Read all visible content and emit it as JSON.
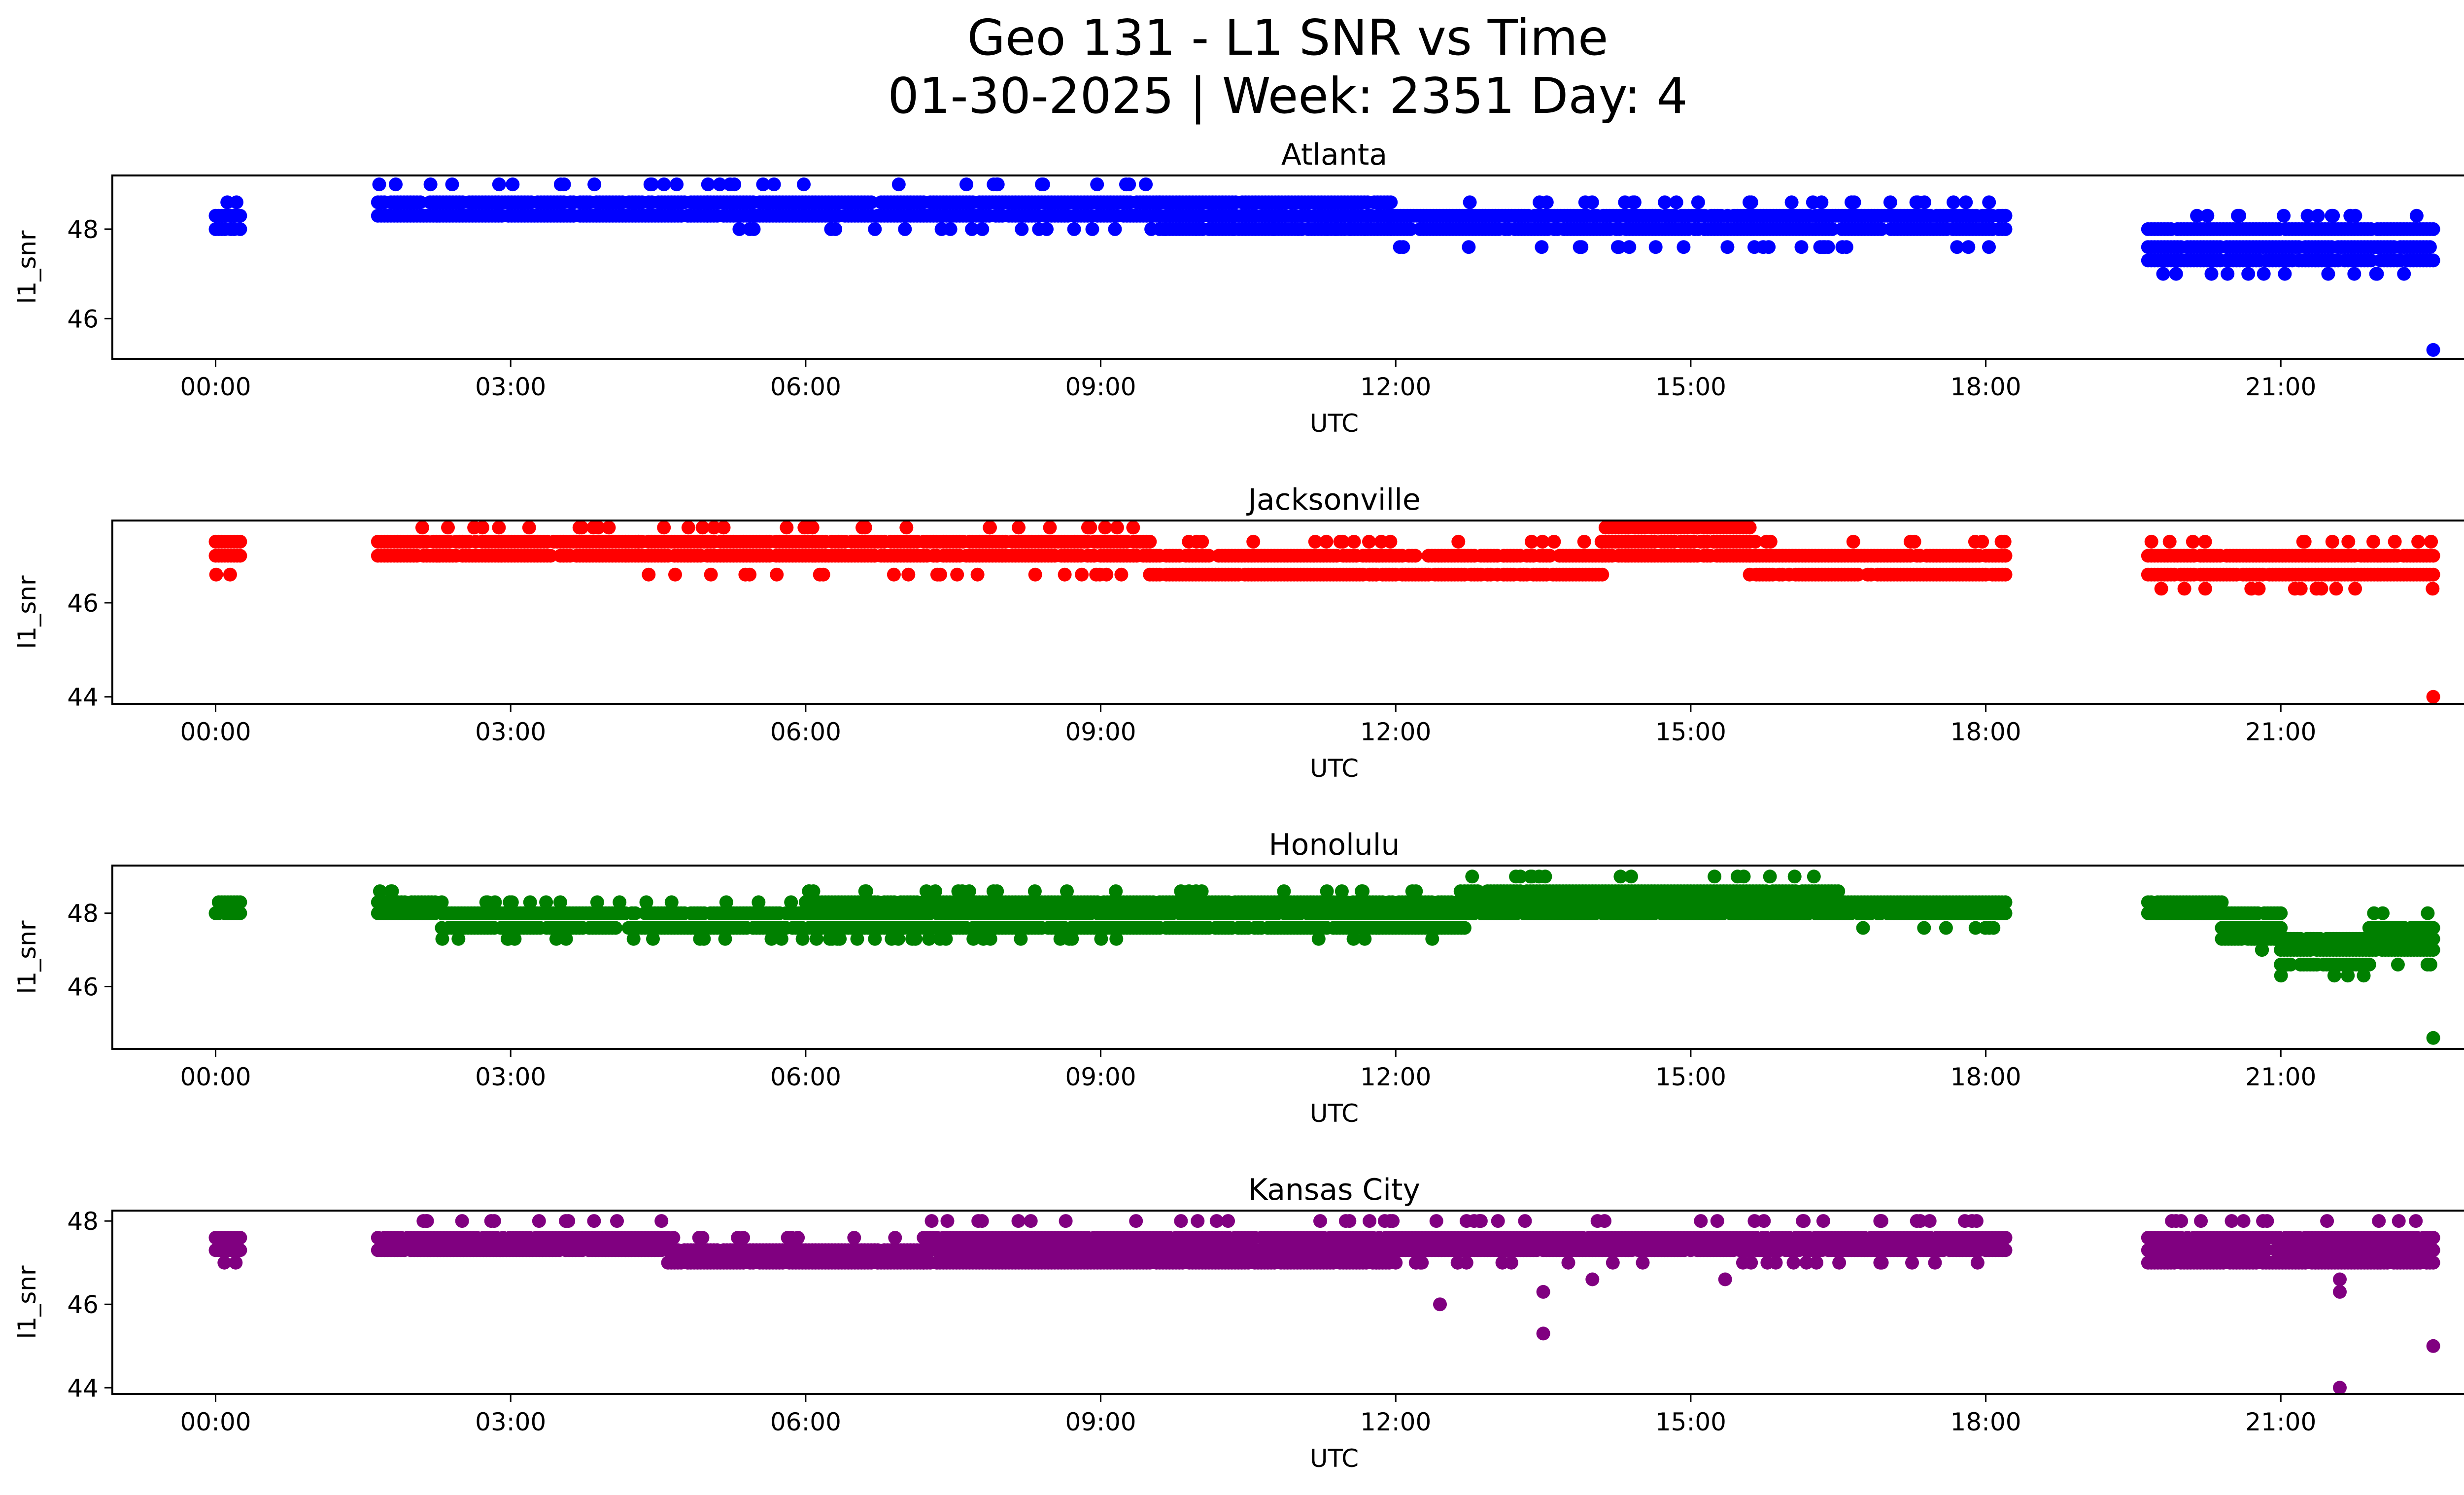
{
  "figure": {
    "title_line1": "Geo 131 - L1 SNR vs Time",
    "title_line2": "01-30-2025 | Week: 2351 Day: 4"
  },
  "chart_data": [
    {
      "type": "scatter",
      "title": "Atlanta",
      "color": "#0000ff",
      "xlabel": "UTC",
      "ylabel": "l1_snr",
      "xlim_hours": [
        -1.05,
        23.8
      ],
      "ylim": [
        45.1,
        49.2
      ],
      "yticks": [
        46,
        48
      ],
      "xticks": [
        "00:00",
        "03:00",
        "06:00",
        "09:00",
        "12:00",
        "15:00",
        "18:00",
        "21:00"
      ],
      "segments": [
        {
          "x0": 0.0,
          "x1": 0.25,
          "levels": [
            48.0,
            48.3
          ],
          "sparse": [
            48.6
          ]
        },
        {
          "x0": 1.65,
          "x1": 5.0,
          "levels": [
            48.3,
            48.6
          ],
          "sparse": [
            49.0
          ]
        },
        {
          "x0": 5.0,
          "x1": 9.6,
          "levels": [
            48.3,
            48.6
          ],
          "sparse": [
            48.0,
            49.0
          ]
        },
        {
          "x0": 9.6,
          "x1": 11.95,
          "levels": [
            48.0,
            48.3,
            48.6
          ],
          "sparse": [
            48.0
          ]
        },
        {
          "x0": 11.95,
          "x1": 18.2,
          "levels": [
            48.0,
            48.3
          ],
          "sparse": [
            47.6,
            48.6
          ]
        },
        {
          "x0": 19.65,
          "x1": 22.55,
          "levels": [
            47.3,
            47.6,
            48.0
          ],
          "sparse": [
            47.0,
            48.3
          ]
        }
      ],
      "outliers": [
        {
          "x": 22.55,
          "y": 45.3
        }
      ]
    },
    {
      "type": "scatter",
      "title": "Jacksonville",
      "color": "#ff0000",
      "xlabel": "UTC",
      "ylabel": "l1_snr",
      "xlim_hours": [
        -1.05,
        23.8
      ],
      "ylim": [
        43.85,
        47.75
      ],
      "yticks": [
        44,
        46
      ],
      "xticks": [
        "00:00",
        "03:00",
        "06:00",
        "09:00",
        "12:00",
        "15:00",
        "18:00",
        "21:00"
      ],
      "segments": [
        {
          "x0": 0.0,
          "x1": 0.25,
          "levels": [
            47.0,
            47.3
          ],
          "sparse": [
            46.6
          ]
        },
        {
          "x0": 1.65,
          "x1": 4.3,
          "levels": [
            47.0,
            47.3
          ],
          "sparse": [
            47.6
          ]
        },
        {
          "x0": 4.3,
          "x1": 9.5,
          "levels": [
            47.0,
            47.3
          ],
          "sparse": [
            46.6,
            47.6
          ]
        },
        {
          "x0": 9.5,
          "x1": 14.1,
          "levels": [
            46.6,
            47.0
          ],
          "sparse": [
            47.3
          ]
        },
        {
          "x0": 14.1,
          "x1": 15.6,
          "levels": [
            47.0,
            47.3,
            47.6
          ],
          "sparse": []
        },
        {
          "x0": 15.6,
          "x1": 18.2,
          "levels": [
            46.6,
            47.0
          ],
          "sparse": [
            47.3
          ]
        },
        {
          "x0": 19.65,
          "x1": 22.55,
          "levels": [
            46.6,
            47.0
          ],
          "sparse": [
            46.3,
            47.3
          ]
        }
      ],
      "outliers": [
        {
          "x": 22.55,
          "y": 44.0
        }
      ]
    },
    {
      "type": "scatter",
      "title": "Honolulu",
      "color": "#008000",
      "xlabel": "UTC",
      "ylabel": "l1_snr",
      "xlim_hours": [
        -1.05,
        23.8
      ],
      "ylim": [
        44.3,
        49.3
      ],
      "yticks": [
        46,
        48
      ],
      "xticks": [
        "00:00",
        "03:00",
        "06:00",
        "09:00",
        "12:00",
        "15:00",
        "18:00",
        "21:00"
      ],
      "segments": [
        {
          "x0": 0.0,
          "x1": 0.25,
          "levels": [
            48.0,
            48.3
          ],
          "sparse": []
        },
        {
          "x0": 1.65,
          "x1": 2.3,
          "levels": [
            48.0,
            48.3
          ],
          "sparse": [
            48.6
          ]
        },
        {
          "x0": 2.3,
          "x1": 6.0,
          "levels": [
            47.6,
            48.0
          ],
          "sparse": [
            47.3,
            48.3
          ]
        },
        {
          "x0": 6.0,
          "x1": 12.7,
          "levels": [
            47.6,
            48.0,
            48.3
          ],
          "sparse": [
            47.3,
            48.6
          ]
        },
        {
          "x0": 12.7,
          "x1": 16.5,
          "levels": [
            48.0,
            48.3,
            48.6
          ],
          "sparse": [
            49.0
          ]
        },
        {
          "x0": 16.5,
          "x1": 18.2,
          "levels": [
            48.0,
            48.3
          ],
          "sparse": [
            47.6
          ]
        },
        {
          "x0": 19.65,
          "x1": 20.4,
          "levels": [
            48.0,
            48.3
          ],
          "sparse": []
        },
        {
          "x0": 20.4,
          "x1": 21.0,
          "levels": [
            47.3,
            47.6,
            48.0
          ],
          "sparse": [
            47.0
          ]
        },
        {
          "x0": 21.0,
          "x1": 21.9,
          "levels": [
            46.6,
            47.0,
            47.3
          ],
          "sparse": [
            46.3
          ]
        },
        {
          "x0": 21.9,
          "x1": 22.55,
          "levels": [
            47.0,
            47.3,
            47.6
          ],
          "sparse": [
            48.0,
            46.6
          ]
        }
      ],
      "outliers": [
        {
          "x": 22.55,
          "y": 44.6
        }
      ]
    },
    {
      "type": "scatter",
      "title": "Kansas City",
      "color": "#800080",
      "xlabel": "UTC",
      "ylabel": "l1_snr",
      "xlim_hours": [
        -1.05,
        23.8
      ],
      "ylim": [
        43.85,
        48.25
      ],
      "yticks": [
        44,
        46,
        48
      ],
      "xticks": [
        "00:00",
        "03:00",
        "06:00",
        "09:00",
        "12:00",
        "15:00",
        "18:00",
        "21:00"
      ],
      "segments": [
        {
          "x0": 0.0,
          "x1": 0.25,
          "levels": [
            47.3,
            47.6
          ],
          "sparse": [
            47.0
          ]
        },
        {
          "x0": 1.65,
          "x1": 4.6,
          "levels": [
            47.3,
            47.6
          ],
          "sparse": [
            48.0
          ]
        },
        {
          "x0": 4.6,
          "x1": 7.2,
          "levels": [
            47.0,
            47.3
          ],
          "sparse": [
            47.6
          ]
        },
        {
          "x0": 7.2,
          "x1": 12.0,
          "levels": [
            47.0,
            47.3,
            47.6
          ],
          "sparse": [
            48.0
          ]
        },
        {
          "x0": 12.0,
          "x1": 18.2,
          "levels": [
            47.3,
            47.6
          ],
          "sparse": [
            47.0,
            48.0
          ]
        },
        {
          "x0": 19.65,
          "x1": 22.55,
          "levels": [
            47.0,
            47.3,
            47.6
          ],
          "sparse": [
            48.0
          ]
        }
      ],
      "outliers": [
        {
          "x": 12.45,
          "y": 46.0
        },
        {
          "x": 13.5,
          "y": 46.3
        },
        {
          "x": 13.5,
          "y": 45.3
        },
        {
          "x": 14.0,
          "y": 46.6
        },
        {
          "x": 15.35,
          "y": 46.6
        },
        {
          "x": 21.6,
          "y": 46.6
        },
        {
          "x": 21.6,
          "y": 46.3
        },
        {
          "x": 21.6,
          "y": 44.0
        },
        {
          "x": 22.55,
          "y": 45.0
        }
      ]
    }
  ]
}
